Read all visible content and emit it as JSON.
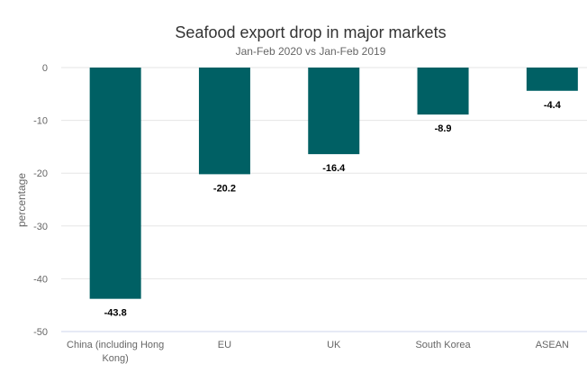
{
  "chart_data": {
    "type": "bar",
    "title": "Seafood export drop in major markets",
    "subtitle": "Jan-Feb 2020 vs Jan-Feb 2019",
    "xlabel": "",
    "ylabel": "percentage",
    "categories": [
      "China (including Hong Kong)",
      "EU",
      "UK",
      "South Korea",
      "ASEAN"
    ],
    "category_lines": [
      [
        "China (including Hong",
        "Kong)"
      ],
      [
        "EU"
      ],
      [
        "UK"
      ],
      [
        "South Korea"
      ],
      [
        "ASEAN"
      ]
    ],
    "values": [
      -43.8,
      -20.2,
      -16.4,
      -8.9,
      -4.4
    ],
    "data_labels": [
      "-43.8",
      "-20.2",
      "-16.4",
      "-8.9",
      "-4.4"
    ],
    "ylim": [
      -50,
      0
    ],
    "yticks": [
      0,
      -10,
      -20,
      -30,
      -40,
      -50
    ],
    "grid": true,
    "legend": "none",
    "bar_color": "#006064"
  }
}
